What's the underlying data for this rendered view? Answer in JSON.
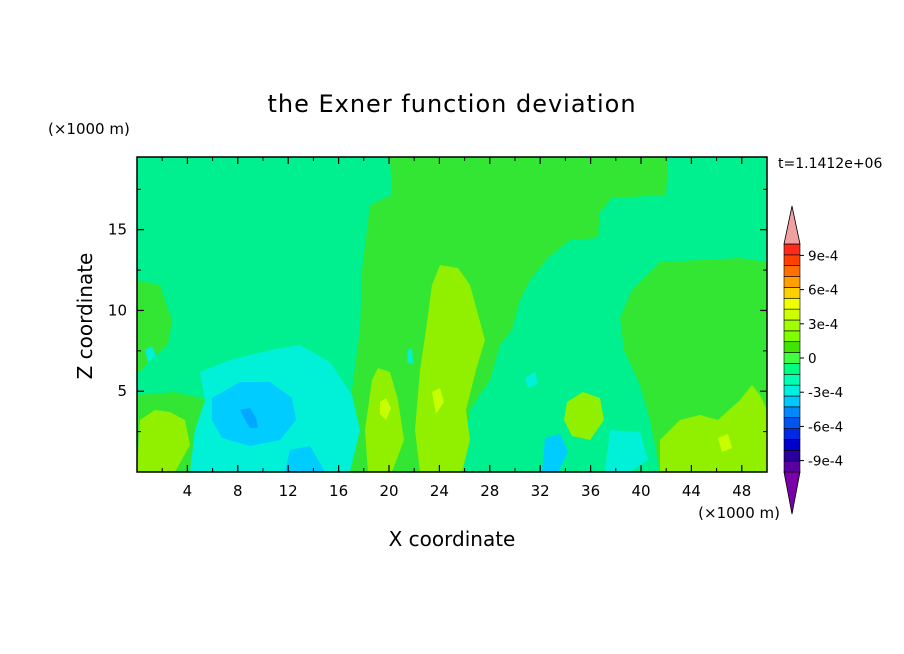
{
  "chart_data": {
    "type": "heatmap",
    "title": "the Exner function deviation",
    "xlabel": "X coordinate",
    "ylabel": "Z coordinate",
    "x_unit": "(×1000 m)",
    "y_unit": "(×1000 m)",
    "time_label": "t=1.1412e+06",
    "xlim": [
      0,
      50
    ],
    "ylim": [
      0,
      19.5
    ],
    "x_ticks": [
      4,
      8,
      12,
      16,
      20,
      24,
      28,
      32,
      36,
      40,
      44,
      48
    ],
    "y_ticks": [
      5,
      10,
      15
    ],
    "x_tick_labels": [
      "4",
      "8",
      "12",
      "16",
      "20",
      "24",
      "28",
      "32",
      "36",
      "40",
      "44",
      "48"
    ],
    "y_tick_labels": [
      "5",
      "10",
      "15"
    ],
    "colorbar": {
      "levels": [
        -0.0011,
        -0.001,
        -0.0009,
        -0.0008,
        -0.0007,
        -0.0006,
        -0.0005,
        -0.0004,
        -0.0003,
        -0.0002,
        -0.0001,
        0,
        0.0001,
        0.0002,
        0.0003,
        0.0004,
        0.0005,
        0.0006,
        0.0007,
        0.0008,
        0.0009,
        0.001,
        0.0011
      ],
      "colors": [
        "#7a00aa",
        "#5a00a0",
        "#2a00a0",
        "#0000cc",
        "#0028e6",
        "#0055f0",
        "#0088ff",
        "#00c8ff",
        "#00f0e0",
        "#00ffb0",
        "#00ff80",
        "#40ff40",
        "#40e600",
        "#80ff00",
        "#a0ff00",
        "#ccff00",
        "#f0ff00",
        "#ffd000",
        "#ffa000",
        "#ff7000",
        "#ff4000",
        "#ff2a1a",
        "#f0a0a0"
      ],
      "tick_labels": [
        "9e-4",
        "6e-4",
        "3e-4",
        "0",
        "-3e-4",
        "-6e-4",
        "-9e-4"
      ],
      "tick_values": [
        0.0009,
        0.0006,
        0.0003,
        0,
        -0.0003,
        -0.0006,
        -0.0009
      ]
    }
  }
}
